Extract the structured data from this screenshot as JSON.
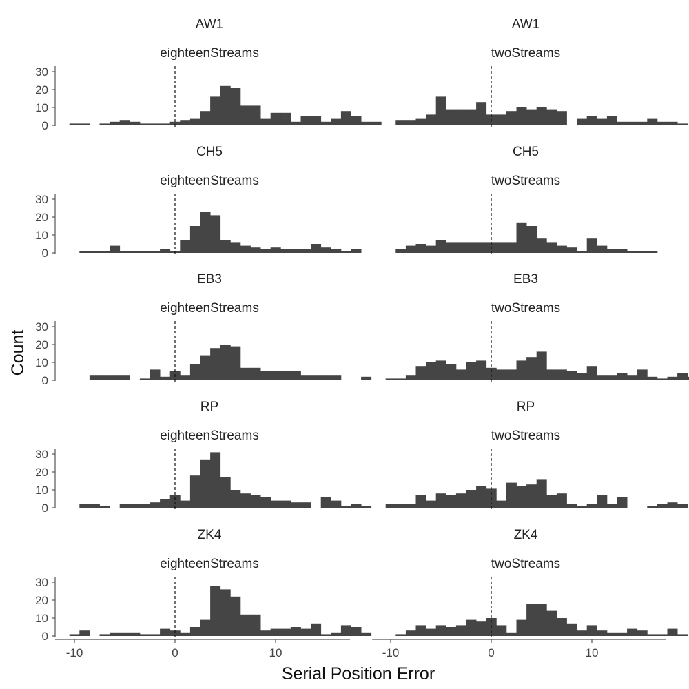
{
  "chart_data": {
    "type": "bar",
    "subtype": "faceted-histogram",
    "xlabel": "Serial Position Error",
    "ylabel": "Count",
    "xlim": [
      -10.5,
      17.5
    ],
    "ylim": [
      0,
      32
    ],
    "x_ticks": [
      -10,
      0,
      10
    ],
    "y_ticks": [
      0,
      10,
      20,
      30
    ],
    "bin_width": 1,
    "reference_line_x": 0,
    "grid": false,
    "rows": [
      "AW1",
      "CH5",
      "EB3",
      "RP",
      "ZK4"
    ],
    "columns": [
      "eighteenStreams",
      "twoStreams"
    ],
    "bin_start": -10,
    "panels": [
      {
        "row": "AW1",
        "column": "eighteenStreams",
        "bin_start": -10,
        "values": [
          1,
          1,
          0,
          1,
          2,
          3,
          2,
          1,
          1,
          1,
          2,
          3,
          4,
          8,
          16,
          22,
          21,
          11,
          11,
          4,
          7,
          7,
          2,
          5,
          5,
          2,
          4,
          8,
          5,
          2,
          2
        ]
      },
      {
        "row": "AW1",
        "column": "twoStreams",
        "bin_start": -10,
        "values": [
          0,
          3,
          3,
          4,
          6,
          16,
          9,
          9,
          9,
          13,
          6,
          6,
          8,
          10,
          9,
          10,
          9,
          8,
          0,
          4,
          5,
          4,
          5,
          2,
          2,
          2,
          4,
          2,
          2,
          1
        ]
      },
      {
        "row": "CH5",
        "column": "eighteenStreams",
        "bin_start": -9,
        "values": [
          1,
          1,
          1,
          4,
          1,
          1,
          1,
          1,
          2,
          1,
          7,
          15,
          23,
          21,
          7,
          6,
          4,
          3,
          2,
          3,
          2,
          2,
          2,
          5,
          3,
          2,
          1,
          2
        ]
      },
      {
        "row": "CH5",
        "column": "twoStreams",
        "bin_start": -9,
        "values": [
          2,
          4,
          5,
          4,
          7,
          6,
          6,
          6,
          6,
          6,
          6,
          6,
          17,
          15,
          8,
          6,
          4,
          3,
          1,
          8,
          4,
          2,
          2,
          1,
          1,
          1
        ]
      },
      {
        "row": "EB3",
        "column": "eighteenStreams",
        "bin_start": -10,
        "values": [
          0,
          0,
          3,
          3,
          3,
          3,
          0,
          1,
          6,
          2,
          5,
          3,
          9,
          14,
          18,
          20,
          19,
          7,
          7,
          5,
          5,
          5,
          5,
          3,
          3,
          3,
          3,
          0,
          0,
          2,
          0
        ]
      },
      {
        "row": "EB3",
        "column": "twoStreams",
        "bin_start": -10,
        "values": [
          1,
          1,
          3,
          8,
          10,
          11,
          9,
          6,
          10,
          11,
          7,
          6,
          6,
          11,
          13,
          16,
          6,
          6,
          5,
          4,
          8,
          3,
          3,
          4,
          3,
          6,
          2,
          1,
          2,
          4,
          2
        ]
      },
      {
        "row": "RP",
        "column": "eighteenStreams",
        "bin_start": -9,
        "values": [
          2,
          2,
          1,
          0,
          2,
          2,
          2,
          3,
          5,
          7,
          4,
          18,
          27,
          31,
          17,
          10,
          8,
          7,
          6,
          4,
          4,
          3,
          3,
          0,
          6,
          4,
          1,
          2,
          1
        ]
      },
      {
        "row": "RP",
        "column": "twoStreams",
        "bin_start": -10,
        "values": [
          2,
          2,
          2,
          7,
          4,
          8,
          7,
          8,
          10,
          12,
          11,
          4,
          14,
          12,
          13,
          16,
          7,
          8,
          2,
          1,
          2,
          7,
          2,
          6,
          0,
          0,
          1,
          2,
          3,
          2
        ]
      },
      {
        "row": "ZK4",
        "column": "eighteenStreams",
        "bin_start": -10,
        "values": [
          1,
          3,
          0,
          1,
          2,
          2,
          2,
          1,
          1,
          4,
          3,
          2,
          5,
          9,
          28,
          26,
          22,
          12,
          12,
          3,
          4,
          4,
          5,
          4,
          7,
          1,
          2,
          6,
          5,
          2
        ]
      },
      {
        "row": "ZK4",
        "column": "twoStreams",
        "bin_start": -10,
        "values": [
          0,
          1,
          3,
          6,
          4,
          6,
          5,
          6,
          9,
          8,
          10,
          6,
          2,
          9,
          18,
          18,
          14,
          10,
          7,
          3,
          6,
          3,
          2,
          2,
          4,
          3,
          1,
          1,
          4,
          1
        ]
      }
    ]
  },
  "colors": {
    "bar_fill": "#454545",
    "axis": "#555555",
    "reference_line": "#111111",
    "background": "#ffffff"
  }
}
